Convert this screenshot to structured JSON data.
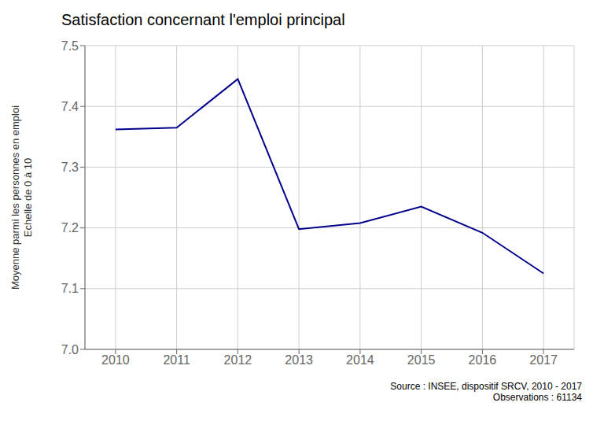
{
  "chart_data": {
    "type": "line",
    "title": "Satisfaction concernant l'emploi principal",
    "ylabel": "Moyenne parmi les personnes en emploi\nEchelle de 0 à 10",
    "annotation": "Source : INSEE, dispositif SRCV, 2010 - 2017\nObservations : 61134",
    "x": [
      2010,
      2011,
      2012,
      2013,
      2014,
      2015,
      2016,
      2017
    ],
    "values": [
      7.362,
      7.365,
      7.445,
      7.198,
      7.208,
      7.235,
      7.192,
      7.125
    ],
    "color": "#00008B",
    "xlim": [
      2009.5,
      2017.5
    ],
    "xticks": [
      2010,
      2011,
      2012,
      2013,
      2014,
      2015,
      2016,
      2017
    ],
    "ylim": [
      7.0,
      7.5
    ],
    "yticks": [
      {
        "value": 7.0,
        "label": "7.0"
      },
      7.1,
      7.2,
      7.3,
      7.4,
      7.5
    ],
    "grid": true
  }
}
